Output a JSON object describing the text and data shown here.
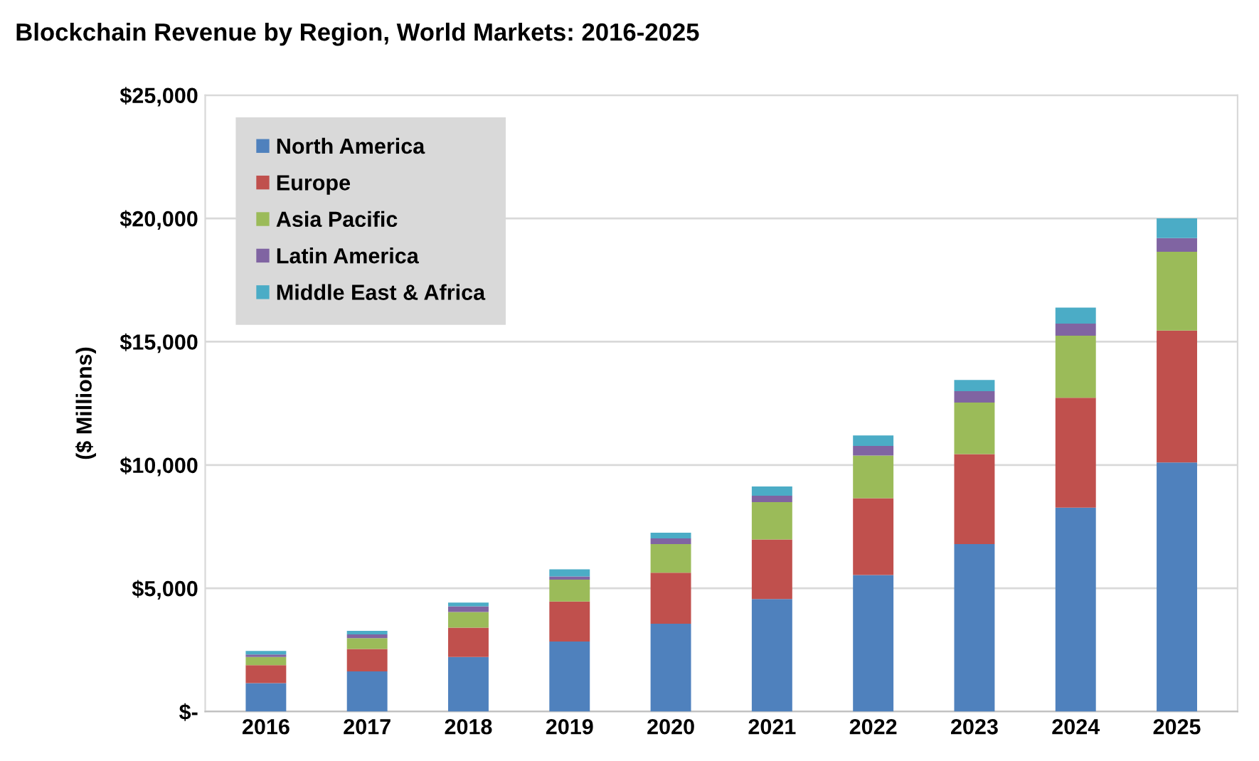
{
  "chart_data": {
    "type": "bar",
    "title": "Blockchain Revenue by Region, World Markets: 2016-2025",
    "ylabel": "($ Millions)",
    "categories": [
      "2016",
      "2017",
      "2018",
      "2019",
      "2020",
      "2021",
      "2022",
      "2023",
      "2024",
      "2025"
    ],
    "stacked": true,
    "series": [
      {
        "name": "North America",
        "color": "#4f81bd",
        "values": [
          1150,
          1630,
          2210,
          2840,
          3560,
          4560,
          5540,
          6790,
          8270,
          10100
        ]
      },
      {
        "name": "Europe",
        "color": "#c0504d",
        "values": [
          730,
          910,
          1190,
          1620,
          2070,
          2420,
          3110,
          3650,
          4460,
          5350
        ]
      },
      {
        "name": "Asia Pacific",
        "color": "#9bbb59",
        "values": [
          330,
          440,
          640,
          890,
          1160,
          1510,
          1730,
          2090,
          2510,
          3200
        ]
      },
      {
        "name": "Latin America",
        "color": "#8064a2",
        "values": [
          100,
          150,
          230,
          130,
          230,
          260,
          390,
          460,
          490,
          550
        ]
      },
      {
        "name": "Middle East & Africa",
        "color": "#4bacc6",
        "values": [
          150,
          140,
          150,
          290,
          230,
          380,
          430,
          460,
          650,
          800
        ]
      }
    ],
    "ylim": [
      0,
      25000
    ],
    "yticks": [
      {
        "value": 0,
        "label": "$-"
      },
      {
        "value": 5000,
        "label": "$5,000"
      },
      {
        "value": 10000,
        "label": "$10,000"
      },
      {
        "value": 15000,
        "label": "$15,000"
      },
      {
        "value": 20000,
        "label": "$20,000"
      },
      {
        "value": 25000,
        "label": "$25,000"
      }
    ],
    "grid": "y",
    "legend": "top left"
  }
}
